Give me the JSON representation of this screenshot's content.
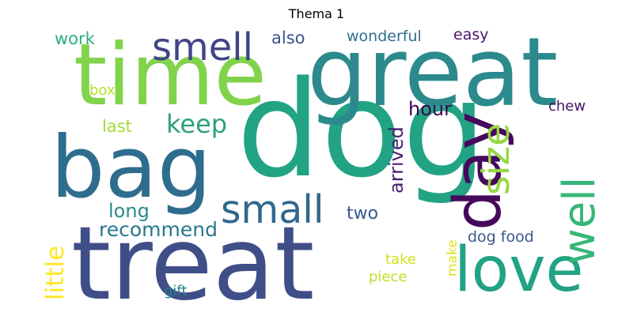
{
  "figure": {
    "title": "Thema 1"
  },
  "wordcloud": {
    "colormap": "viridis",
    "words": [
      {
        "text": "dog",
        "color": "#22a384"
      },
      {
        "text": "great",
        "color": "#2c8a8c"
      },
      {
        "text": "treat",
        "color": "#404e87"
      },
      {
        "text": "time",
        "color": "#82d34c"
      },
      {
        "text": "bag",
        "color": "#2e6d8e"
      },
      {
        "text": "love",
        "color": "#22a384"
      },
      {
        "text": "day",
        "color": "#46085c"
      },
      {
        "text": "smell",
        "color": "#414487"
      },
      {
        "text": "small",
        "color": "#31678e"
      },
      {
        "text": "well",
        "color": "#35b778"
      },
      {
        "text": "size",
        "color": "#95d840"
      },
      {
        "text": "keep",
        "color": "#2ea07f"
      },
      {
        "text": "little",
        "color": "#fde725"
      },
      {
        "text": "recommend",
        "color": "#2a788e"
      },
      {
        "text": "long",
        "color": "#2c8a8c"
      },
      {
        "text": "two",
        "color": "#38598c"
      },
      {
        "text": "hour",
        "color": "#440154"
      },
      {
        "text": "arrived",
        "color": "#481f70"
      },
      {
        "text": "last",
        "color": "#a5db36"
      },
      {
        "text": "work",
        "color": "#29af7f"
      },
      {
        "text": "also",
        "color": "#3b528b"
      },
      {
        "text": "wonderful",
        "color": "#2d708e"
      },
      {
        "text": "easy",
        "color": "#481668"
      },
      {
        "text": "box",
        "color": "#b8de29"
      },
      {
        "text": "chew",
        "color": "#471365"
      },
      {
        "text": "take",
        "color": "#d2e21b"
      },
      {
        "text": "make",
        "color": "#dde318"
      },
      {
        "text": "piece",
        "color": "#c2df23"
      },
      {
        "text": "gift",
        "color": "#26828e"
      },
      {
        "text": "dog food",
        "color": "#38598c"
      }
    ]
  }
}
